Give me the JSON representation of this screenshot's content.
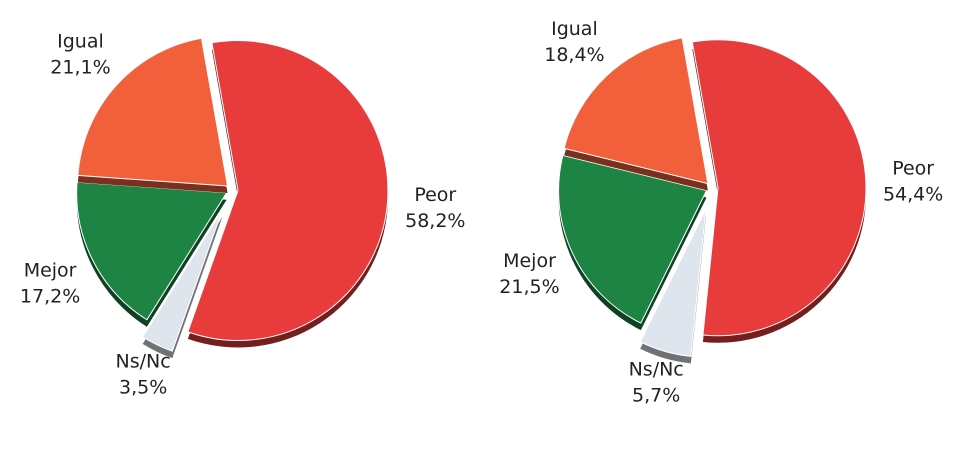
{
  "chart_data": [
    {
      "type": "pie",
      "categories": [
        "Peor",
        "Ns/Nc",
        "Mejor",
        "Igual"
      ],
      "values": [
        58.2,
        3.5,
        17.2,
        21.1
      ],
      "value_labels": [
        "58,2%",
        "3,5%",
        "17,2%",
        "21,1%"
      ],
      "colors": [
        "#e83c3c",
        "#dfe5ec",
        "#1e8443",
        "#f2603b"
      ]
    },
    {
      "type": "pie",
      "categories": [
        "Peor",
        "Ns/Nc",
        "Mejor",
        "Igual"
      ],
      "values": [
        54.4,
        5.7,
        21.5,
        18.4
      ],
      "value_labels": [
        "54,4%",
        "5,7%",
        "21,5%",
        "18,4%"
      ],
      "colors": [
        "#e83c3c",
        "#dfe5ec",
        "#1e8443",
        "#f2603b"
      ]
    }
  ]
}
